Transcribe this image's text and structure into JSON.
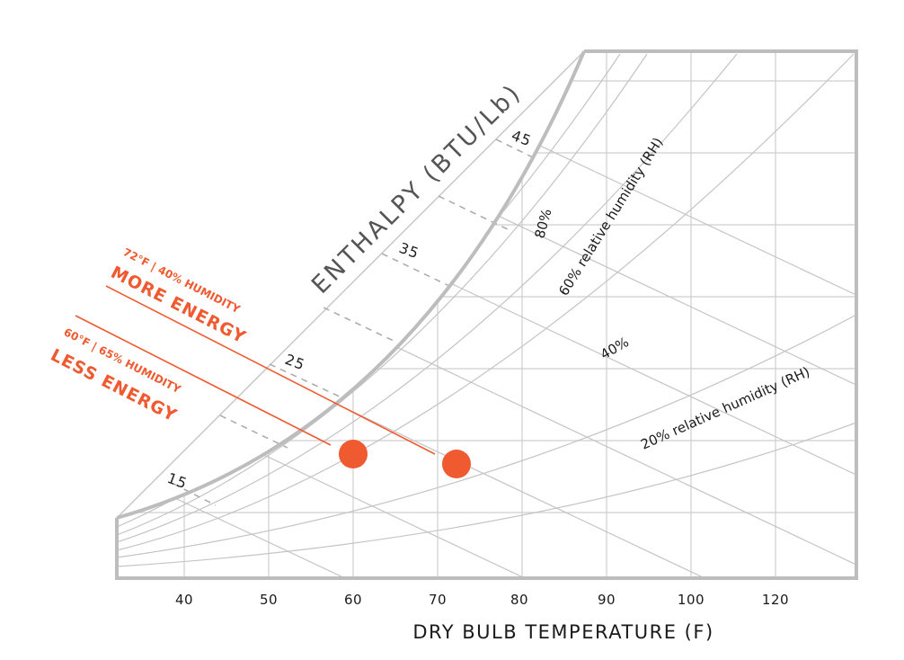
{
  "chart_data": {
    "type": "psychrometric",
    "xlabel": "DRY BULB TEMPERATURE (F)",
    "x_ticks": [
      "40",
      "50",
      "60",
      "70",
      "80",
      "90",
      "100",
      "120"
    ],
    "enthalpy_axis": {
      "title": "ENTHALPY (BTU/Lb)",
      "ticks": [
        "15",
        "25",
        "35",
        "45"
      ]
    },
    "rh_labels": [
      "80%",
      "60% relative humidity (RH)",
      "40%",
      "20% relative humidity (RH)"
    ],
    "points": [
      {
        "label_top": "60°F | 65% HUMIDITY",
        "label_main": "LESS ENERGY",
        "temperature_f": 60,
        "relative_humidity": 65
      },
      {
        "label_top": "72°F | 40% HUMIDITY",
        "label_main": "MORE ENERGY",
        "temperature_f": 72,
        "relative_humidity": 40
      }
    ],
    "colors": {
      "accent": "#f05a30",
      "grid": "#c8c8c8",
      "frame": "#bdbdbd",
      "text": "#1a1a1a"
    }
  }
}
